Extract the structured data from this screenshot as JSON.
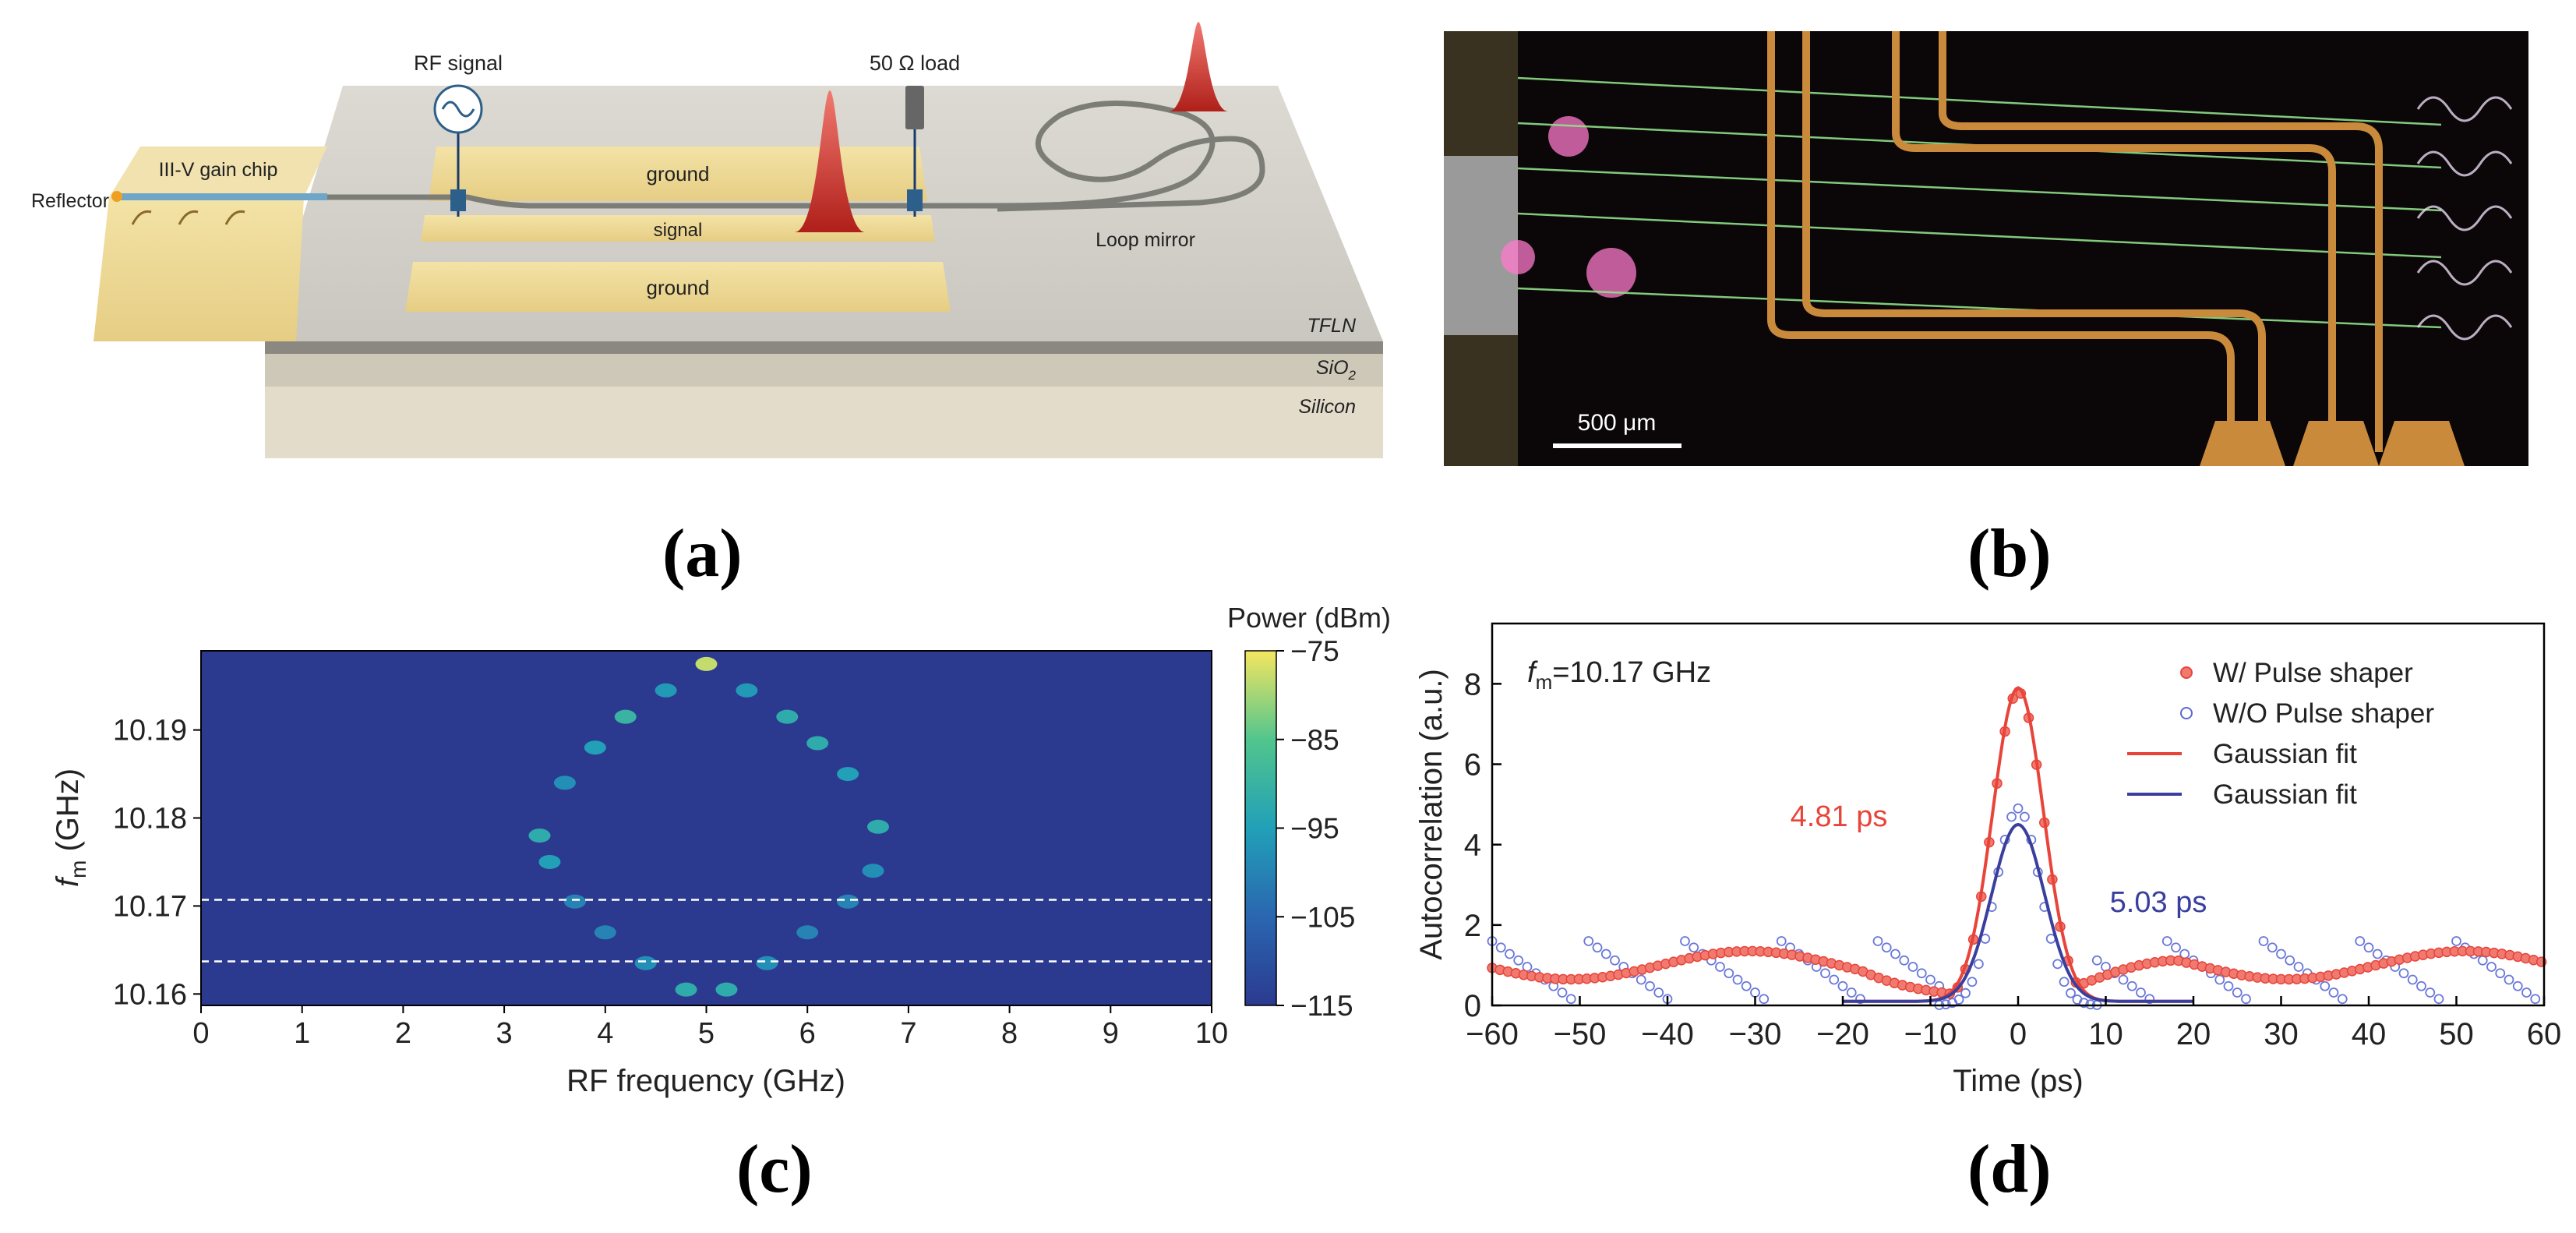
{
  "panel_labels": {
    "a": "(a)",
    "b": "(b)",
    "c": "(c)",
    "d": "(d)"
  },
  "schematic": {
    "rf_signal": "RF signal",
    "load": "50 Ω load",
    "gain_chip": "III-V gain chip",
    "reflector": "Reflector",
    "ground_top": "ground",
    "signal": "signal",
    "ground_bottom": "ground",
    "loop_mirror": "Loop mirror",
    "layer_tfln": "TFLN",
    "layer_sio2": "SiO",
    "layer_sio2_sub": "2",
    "layer_silicon": "Silicon"
  },
  "micrograph": {
    "scale_bar": "500 μm"
  },
  "colors": {
    "red": "#e8443a",
    "blue": "#3a3f9e",
    "heat_bg": "#2b3a8f",
    "copper": "#c98a3c"
  },
  "chart_data": [
    {
      "type": "heatmap",
      "xlabel": "RF frequency (GHz)",
      "ylabel_main": "f",
      "ylabel_sub": "m",
      "ylabel_unit": " (GHz)",
      "xlim": [
        0,
        10
      ],
      "ylim": [
        10.1587,
        10.199
      ],
      "xticks": [
        0,
        1,
        2,
        3,
        4,
        5,
        6,
        7,
        8,
        9,
        10
      ],
      "yticks": [
        10.16,
        10.17,
        10.18,
        10.19
      ],
      "colorbar": {
        "label": "Power (dBm)",
        "range": [
          -115,
          -75
        ],
        "ticks": [
          -75,
          -85,
          -95,
          -105,
          -115
        ]
      },
      "dashed_lines": [
        10.1707,
        10.1637
      ],
      "trace_points": [
        {
          "x": 5.0,
          "y": 10.1975,
          "power": -78
        },
        {
          "x": 4.6,
          "y": 10.1945,
          "power": -96
        },
        {
          "x": 5.4,
          "y": 10.1945,
          "power": -96
        },
        {
          "x": 4.2,
          "y": 10.1915,
          "power": -90
        },
        {
          "x": 5.8,
          "y": 10.1915,
          "power": -92
        },
        {
          "x": 3.9,
          "y": 10.188,
          "power": -95
        },
        {
          "x": 6.1,
          "y": 10.1885,
          "power": -92
        },
        {
          "x": 3.6,
          "y": 10.184,
          "power": -98
        },
        {
          "x": 6.4,
          "y": 10.185,
          "power": -95
        },
        {
          "x": 3.35,
          "y": 10.178,
          "power": -92
        },
        {
          "x": 6.7,
          "y": 10.179,
          "power": -92
        },
        {
          "x": 3.45,
          "y": 10.175,
          "power": -95
        },
        {
          "x": 6.65,
          "y": 10.174,
          "power": -98
        },
        {
          "x": 3.7,
          "y": 10.1705,
          "power": -100
        },
        {
          "x": 6.4,
          "y": 10.1705,
          "power": -100
        },
        {
          "x": 4.0,
          "y": 10.167,
          "power": -100
        },
        {
          "x": 6.0,
          "y": 10.167,
          "power": -100
        },
        {
          "x": 4.4,
          "y": 10.1635,
          "power": -98
        },
        {
          "x": 5.6,
          "y": 10.1635,
          "power": -98
        },
        {
          "x": 4.8,
          "y": 10.1605,
          "power": -92
        },
        {
          "x": 5.2,
          "y": 10.1605,
          "power": -92
        }
      ]
    },
    {
      "type": "scatter",
      "xlabel": "Time (ps)",
      "ylabel": "Autocorrelation (a.u.)",
      "xlim": [
        -60,
        60
      ],
      "ylim": [
        0,
        9.5
      ],
      "xticks": [
        -60,
        -50,
        -40,
        -30,
        -20,
        -10,
        0,
        10,
        20,
        30,
        40,
        50,
        60
      ],
      "yticks": [
        0,
        2,
        4,
        6,
        8
      ],
      "annotation_main": "f",
      "annotation_sub": "m",
      "annotation_value": "=10.17 GHz",
      "width_red": "4.81 ps",
      "width_blue": "5.03 ps",
      "legend": [
        "W/ Pulse shaper",
        "W/O Pulse shaper",
        "Gaussian fit",
        "Gaussian fit"
      ],
      "series": [
        {
          "name": "W/ Pulse shaper",
          "fit_peak": 7.8,
          "fit_fwhm_ps": 6.8
        },
        {
          "name": "W/O Pulse shaper",
          "fit_peak": 4.4,
          "fit_fwhm_ps": 7.1,
          "raw_peak": 4.9
        }
      ]
    }
  ]
}
